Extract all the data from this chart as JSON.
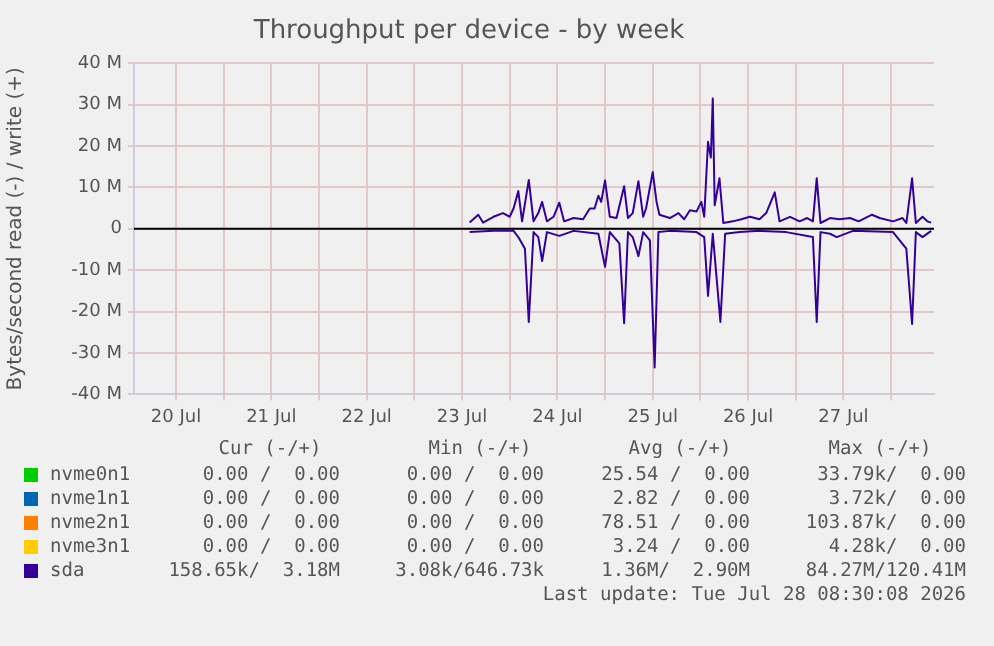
{
  "chart_data": {
    "type": "line",
    "title": "Throughput per device - by week",
    "ylabel": "Bytes/second read (-) / write (+)",
    "xlim": [
      "2026-07-20T01:26",
      "2026-07-28T10:48"
    ],
    "xticks": [
      {
        "value": "2026-07-20T12:00",
        "label": "20 Jul"
      },
      {
        "value": "2026-07-21",
        "label": null
      },
      {
        "value": "2026-07-21T12:00",
        "label": "21 Jul"
      },
      {
        "value": "2026-07-22",
        "label": null
      },
      {
        "value": "2026-07-22T12:00",
        "label": "22 Jul"
      },
      {
        "value": "2026-07-23",
        "label": null
      },
      {
        "value": "2026-07-23T12:00",
        "label": "23 Jul"
      },
      {
        "value": "2026-07-24",
        "label": null
      },
      {
        "value": "2026-07-24T12:00",
        "label": "24 Jul"
      },
      {
        "value": "2026-07-25",
        "label": null
      },
      {
        "value": "2026-07-25T12:00",
        "label": "25 Jul"
      },
      {
        "value": "2026-07-26",
        "label": null
      },
      {
        "value": "2026-07-26T12:00",
        "label": "26 Jul"
      },
      {
        "value": "2026-07-27",
        "label": null
      },
      {
        "value": "2026-07-27T12:00",
        "label": "27 Jul"
      },
      {
        "value": "2026-07-28",
        "label": null
      }
    ],
    "ylim": [
      -40,
      40
    ],
    "yticks": [
      {
        "value": -40,
        "label": "-40 M"
      },
      {
        "value": -30,
        "label": "-30 M"
      },
      {
        "value": -20,
        "label": "-20 M"
      },
      {
        "value": -10,
        "label": "-10 M"
      },
      {
        "value": 0,
        "label": "0"
      },
      {
        "value": 10,
        "label": "10 M"
      },
      {
        "value": 20,
        "label": "20 M"
      },
      {
        "value": 30,
        "label": "30 M"
      },
      {
        "value": 40,
        "label": "40 M"
      }
    ],
    "grid": true,
    "legend": "bottom",
    "marker": "none",
    "line_style": "solid",
    "ref_lines": [
      {
        "axis": "y",
        "value": 0,
        "color": "#000000"
      }
    ],
    "series": [
      {
        "name": "nvme0n1",
        "color": "#00cc00"
      },
      {
        "name": "nvme1n1",
        "color": "#0066b3"
      },
      {
        "name": "nvme2n1",
        "color": "#ff8000"
      },
      {
        "name": "nvme3n1",
        "color": "#ffcc00"
      },
      {
        "name": "sda",
        "color": "#330099",
        "x": [
          "2026-07-23T13:55",
          "2026-07-23T16:05",
          "2026-07-23T17:17",
          "2026-07-23T19:55",
          "2026-07-23T22:19",
          "2026-07-24T00:00",
          "2026-07-24T00:58",
          "2026-07-24T02:10",
          "2026-07-24T03:07",
          "2026-07-24T04:48",
          "2026-07-24T06:00",
          "2026-07-24T07:12",
          "2026-07-24T08:10",
          "2026-07-24T09:22",
          "2026-07-24T11:02",
          "2026-07-24T12:29",
          "2026-07-24T13:41",
          "2026-07-24T16:05",
          "2026-07-24T18:29",
          "2026-07-24T20:10",
          "2026-07-24T21:22",
          "2026-07-24T22:19",
          "2026-07-24T23:02",
          "2026-07-25T00:00",
          "2026-07-25T01:12",
          "2026-07-25T02:53",
          "2026-07-25T04:48",
          "2026-07-25T05:46",
          "2026-07-25T06:58",
          "2026-07-25T08:24",
          "2026-07-25T09:36",
          "2026-07-25T10:19",
          "2026-07-25T12:00",
          "2026-07-25T12:58",
          "2026-07-25T13:41",
          "2026-07-25T16:19",
          "2026-07-25T18:29",
          "2026-07-25T19:55",
          "2026-07-25T21:22",
          "2026-07-25T23:02",
          "2026-07-26T00:14",
          "2026-07-26T00:58",
          "2026-07-26T01:55",
          "2026-07-26T02:38",
          "2026-07-26T03:07",
          "2026-07-26T03:36",
          "2026-07-26T04:48",
          "2026-07-26T05:46",
          "2026-07-26T08:10",
          "2026-07-26T10:19",
          "2026-07-26T12:29",
          "2026-07-26T14:53",
          "2026-07-26T16:34",
          "2026-07-26T18:43",
          "2026-07-26T19:55",
          "2026-07-26T22:34",
          "2026-07-27T00:58",
          "2026-07-27T02:53",
          "2026-07-27T04:19",
          "2026-07-27T05:17",
          "2026-07-27T06:14",
          "2026-07-27T08:38",
          "2026-07-27T11:02",
          "2026-07-27T13:41",
          "2026-07-27T15:50",
          "2026-07-27T19:12",
          "2026-07-27T21:07",
          "2026-07-28T00:29",
          "2026-07-28T02:53",
          "2026-07-28T03:50",
          "2026-07-28T05:17",
          "2026-07-28T06:14",
          "2026-07-28T07:55",
          "2026-07-28T09:07",
          "2026-07-28T10:05"
        ],
        "values": [
          1.5,
          3.4,
          1.5,
          2.9,
          3.8,
          2.9,
          4.9,
          9.1,
          1.8,
          11.8,
          1.8,
          3.8,
          6.5,
          1.8,
          2.9,
          6.3,
          1.8,
          2.6,
          2.3,
          4.9,
          4.9,
          8,
          6.5,
          11.7,
          2.9,
          2.6,
          10.3,
          2.6,
          3.8,
          11.5,
          2.9,
          4.9,
          13.7,
          6.5,
          3.4,
          2.6,
          3.8,
          2.3,
          4.5,
          4.2,
          6.5,
          2.9,
          21,
          17.2,
          31.5,
          5.7,
          12.2,
          1.4,
          1.8,
          2.3,
          2.9,
          2.3,
          3.8,
          8.8,
          1.8,
          2.9,
          1.8,
          2.6,
          1.8,
          12.2,
          1.4,
          2.6,
          2.3,
          2.6,
          1.8,
          3.4,
          2.6,
          1.8,
          2.6,
          1.4,
          12.2,
          1.4,
          2.9,
          1.8,
          1.5
        ]
      },
      {
        "color": "#330099",
        "x": [
          "2026-07-23T13:55",
          "2026-07-23T19:55",
          "2026-07-24T00:58",
          "2026-07-24T02:10",
          "2026-07-24T03:50",
          "2026-07-24T04:48",
          "2026-07-24T06:00",
          "2026-07-24T07:12",
          "2026-07-24T08:10",
          "2026-07-24T09:22",
          "2026-07-24T12:29",
          "2026-07-24T16:05",
          "2026-07-24T22:19",
          "2026-07-25T00:00",
          "2026-07-25T01:12",
          "2026-07-25T03:36",
          "2026-07-25T04:48",
          "2026-07-25T05:46",
          "2026-07-25T06:58",
          "2026-07-25T08:24",
          "2026-07-25T09:36",
          "2026-07-25T11:17",
          "2026-07-25T12:29",
          "2026-07-25T13:26",
          "2026-07-25T16:19",
          "2026-07-25T23:02",
          "2026-07-26T00:58",
          "2026-07-26T01:55",
          "2026-07-26T03:07",
          "2026-07-26T05:02",
          "2026-07-26T06:14",
          "2026-07-26T09:50",
          "2026-07-26T14:53",
          "2026-07-26T21:36",
          "2026-07-27T04:19",
          "2026-07-27T05:17",
          "2026-07-27T06:14",
          "2026-07-27T08:38",
          "2026-07-27T10:19",
          "2026-07-27T14:24",
          "2026-07-28T00:29",
          "2026-07-28T03:50",
          "2026-07-28T05:17",
          "2026-07-28T06:14",
          "2026-07-28T07:55",
          "2026-07-28T10:05"
        ],
        "values": [
          -0.8,
          -0.5,
          -0.5,
          -2,
          -4.8,
          -22.5,
          -0.8,
          -2,
          -7.8,
          -0.8,
          -1.7,
          -0.5,
          -1.2,
          -9.2,
          -0.8,
          -3.5,
          -22.8,
          -0.8,
          -2,
          -6.6,
          -0.8,
          -2.8,
          -33.5,
          -0.8,
          -0.5,
          -0.8,
          -2,
          -16.2,
          -1.2,
          -22.5,
          -1.2,
          -0.8,
          -0.5,
          -0.8,
          -2,
          -22.5,
          -0.8,
          -1.2,
          -2,
          -0.5,
          -0.8,
          -4.8,
          -23,
          -0.8,
          -2,
          -0.5
        ]
      }
    ],
    "annotations": [
      "Cur (-/+)",
      "Min (-/+)",
      "Avg (-/+)",
      "Max (-/+)",
      "0.00 /  0.00",
      "0.00 /  0.00",
      "25.54 /  0.00",
      "33.79k/  0.00",
      "0.00 /  0.00",
      "0.00 /  0.00",
      "2.82 /  0.00",
      "3.72k/  0.00",
      "0.00 /  0.00",
      "0.00 /  0.00",
      "78.51 /  0.00",
      "103.87k/  0.00",
      "0.00 /  0.00",
      "0.00 /  0.00",
      "3.24 /  0.00",
      "4.28k/  0.00",
      "158.65k/  3.18M",
      "3.08k/646.73k",
      "1.36M/  2.90M",
      "84.27M/120.41M",
      "Last update: Tue Jul 28 08:30:08 2026"
    ]
  }
}
